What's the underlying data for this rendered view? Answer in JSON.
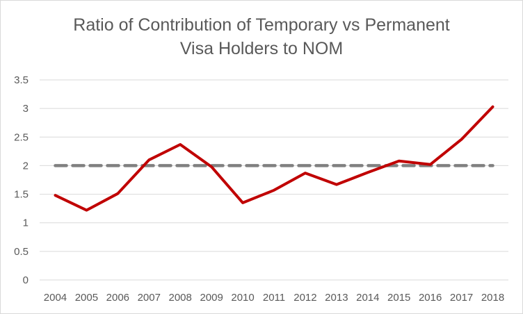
{
  "chart_data": {
    "type": "line",
    "title_lines": [
      "Ratio of Contribution of Temporary vs Permanent",
      "Visa Holders to NOM"
    ],
    "xlabel": "",
    "ylabel": "",
    "categories": [
      "2004",
      "2005",
      "2006",
      "2007",
      "2008",
      "2009",
      "2010",
      "2011",
      "2012",
      "2013",
      "2014",
      "2015",
      "2016",
      "2017",
      "2018"
    ],
    "y_ticks": [
      "0",
      "0.5",
      "1",
      "1.5",
      "2",
      "2.5",
      "3",
      "3.5"
    ],
    "ylim": [
      0,
      3.5
    ],
    "grid": "horizontal",
    "legend": "none",
    "series": [
      {
        "color": "#c00000",
        "style": "solid",
        "values": [
          1.48,
          1.22,
          1.51,
          2.1,
          2.37,
          1.98,
          1.35,
          1.57,
          1.87,
          1.67,
          1.88,
          2.08,
          2.02,
          2.46,
          3.03
        ]
      },
      {
        "color": "#808080",
        "style": "dashed",
        "values": [
          2,
          2,
          2,
          2,
          2,
          2,
          2,
          2,
          2,
          2,
          2,
          2,
          2,
          2,
          2
        ]
      }
    ],
    "gridline_color": "#d9d9d9"
  }
}
